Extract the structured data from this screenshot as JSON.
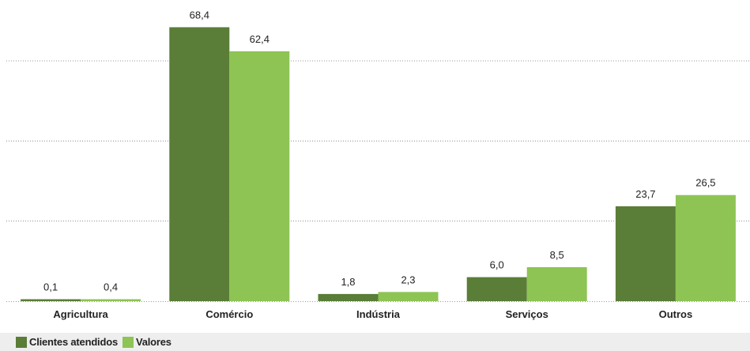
{
  "chart_data": {
    "type": "bar",
    "categories": [
      "Agricultura",
      "Comércio",
      "Indústria",
      "Serviços",
      "Outros"
    ],
    "series": [
      {
        "name": "Clientes atendidos",
        "values": [
          0.1,
          68.4,
          1.8,
          6.0,
          23.7
        ],
        "labels": [
          "0,1",
          "68,4",
          "1,8",
          "6,0",
          "23,7"
        ],
        "color": "#5a7d37"
      },
      {
        "name": "Valores",
        "values": [
          0.4,
          62.4,
          2.3,
          8.5,
          26.5
        ],
        "labels": [
          "0,4",
          "62,4",
          "2,3",
          "8,5",
          "26,5"
        ],
        "color": "#8dc454"
      }
    ],
    "ylim": [
      0,
      75
    ],
    "grid": true,
    "legend_position": "bottom-left"
  }
}
